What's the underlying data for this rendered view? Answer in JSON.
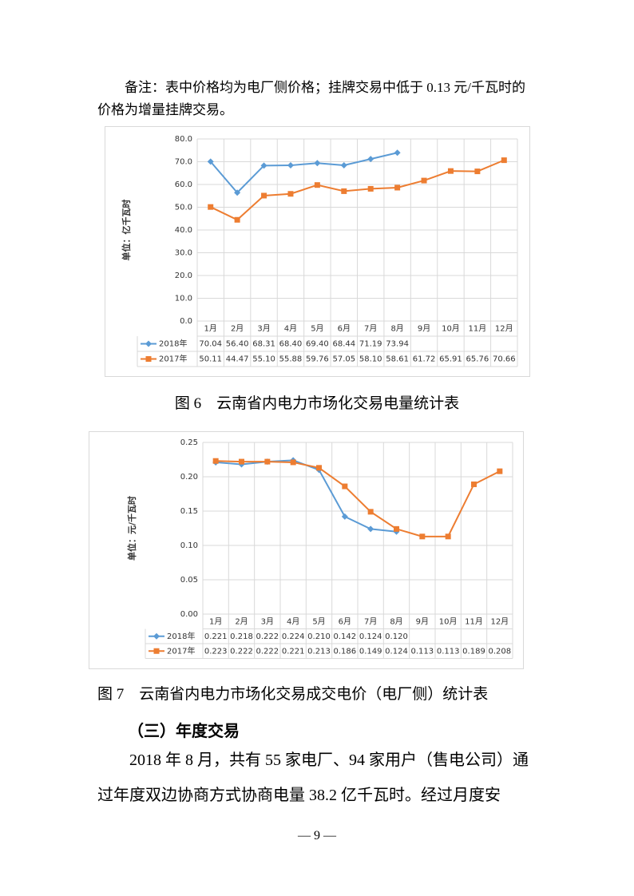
{
  "document": {
    "note": "备注：表中价格均为电厂侧价格；挂牌交易中低于 0.13 元/千瓦时的价格为增量挂牌交易。",
    "caption_1": "图 6　云南省内电力市场化交易电量统计表",
    "caption_2": "图 7　云南省内电力市场化交易成交电价（电厂侧）统计表",
    "heading": "（三）年度交易",
    "paragraph": "2018 年 8 月，共有 55 家电厂、94 家用户（售电公司）通过年度双边协商方式协商电量 38.2 亿千瓦时。经过月度安",
    "page_number": "— 9 —"
  },
  "chart_data": [
    {
      "type": "line",
      "y_label": "单位：亿千瓦时",
      "grid": true,
      "categories": [
        "1月",
        "2月",
        "3月",
        "4月",
        "5月",
        "6月",
        "7月",
        "8月",
        "9月",
        "10月",
        "11月",
        "12月"
      ],
      "ylim": [
        0,
        80
      ],
      "yticks": [
        {
          "value": 0,
          "label": "0.0"
        },
        {
          "value": 10,
          "label": "10.0"
        },
        {
          "value": 20,
          "label": "20.0"
        },
        {
          "value": 30,
          "label": "30.0"
        },
        {
          "value": 40,
          "label": "40.0"
        },
        {
          "value": 50,
          "label": "50.0"
        },
        {
          "value": 60,
          "label": "60.0"
        },
        {
          "value": 70,
          "label": "70.0"
        },
        {
          "value": 80,
          "label": "80.0"
        }
      ],
      "series": [
        {
          "name": "2018年",
          "color": "#5b9bd5",
          "marker": "diamond",
          "values": [
            70.04,
            56.4,
            68.31,
            68.4,
            69.4,
            68.44,
            71.19,
            73.94,
            null,
            null,
            null,
            null
          ],
          "value_labels": [
            "70.04",
            "56.40",
            "68.31",
            "68.40",
            "69.40",
            "68.44",
            "71.19",
            "73.94",
            null,
            null,
            null,
            null
          ]
        },
        {
          "name": "2017年",
          "color": "#ed7d31",
          "marker": "square",
          "values": [
            50.11,
            44.47,
            55.1,
            55.88,
            59.76,
            57.05,
            58.1,
            58.61,
            61.72,
            65.91,
            65.76,
            70.66
          ],
          "value_labels": [
            "50.11",
            "44.47",
            "55.10",
            "55.88",
            "59.76",
            "57.05",
            "58.10",
            "58.61",
            "61.72",
            "65.91",
            "65.76",
            "70.66"
          ]
        }
      ]
    },
    {
      "type": "line",
      "y_label": "单位：元/千瓦时",
      "grid": true,
      "categories": [
        "1月",
        "2月",
        "3月",
        "4月",
        "5月",
        "6月",
        "7月",
        "8月",
        "9月",
        "10月",
        "11月",
        "12月"
      ],
      "ylim": [
        0,
        0.25
      ],
      "yticks": [
        {
          "value": 0,
          "label": "0.00"
        },
        {
          "value": 0.05,
          "label": "0.05"
        },
        {
          "value": 0.1,
          "label": "0.10"
        },
        {
          "value": 0.15,
          "label": "0.15"
        },
        {
          "value": 0.2,
          "label": "0.20"
        },
        {
          "value": 0.25,
          "label": "0.25"
        }
      ],
      "series": [
        {
          "name": "2018年",
          "color": "#5b9bd5",
          "marker": "diamond",
          "values": [
            0.221,
            0.218,
            0.222,
            0.224,
            0.21,
            0.142,
            0.124,
            0.12,
            null,
            null,
            null,
            null
          ],
          "value_labels": [
            "0.221",
            "0.218",
            "0.222",
            "0.224",
            "0.210",
            "0.142",
            "0.124",
            "0.120",
            null,
            null,
            null,
            null
          ]
        },
        {
          "name": "2017年",
          "color": "#ed7d31",
          "marker": "square",
          "values": [
            0.223,
            0.222,
            0.222,
            0.221,
            0.213,
            0.186,
            0.149,
            0.124,
            0.113,
            0.113,
            0.189,
            0.208
          ],
          "value_labels": [
            "0.223",
            "0.222",
            "0.222",
            "0.221",
            "0.213",
            "0.186",
            "0.149",
            "0.124",
            "0.113",
            "0.113",
            "0.189",
            "0.208"
          ]
        }
      ]
    }
  ]
}
